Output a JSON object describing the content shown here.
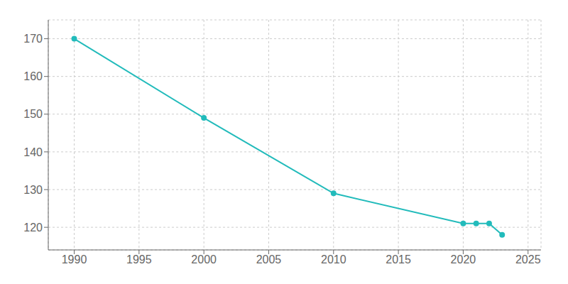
{
  "chart_data": {
    "type": "line",
    "x": [
      1990,
      2000,
      2010,
      2020,
      2021,
      2022,
      2023
    ],
    "values": [
      170,
      149,
      129,
      121,
      121,
      121,
      118
    ],
    "color": "#22BBBB",
    "marker": "circle",
    "xlim": [
      1988,
      2026
    ],
    "ylim": [
      114,
      175
    ],
    "xticks": [
      1990,
      1995,
      2000,
      2005,
      2010,
      2015,
      2020,
      2025
    ],
    "yticks": [
      120,
      130,
      140,
      150,
      160,
      170
    ],
    "grid": true
  }
}
